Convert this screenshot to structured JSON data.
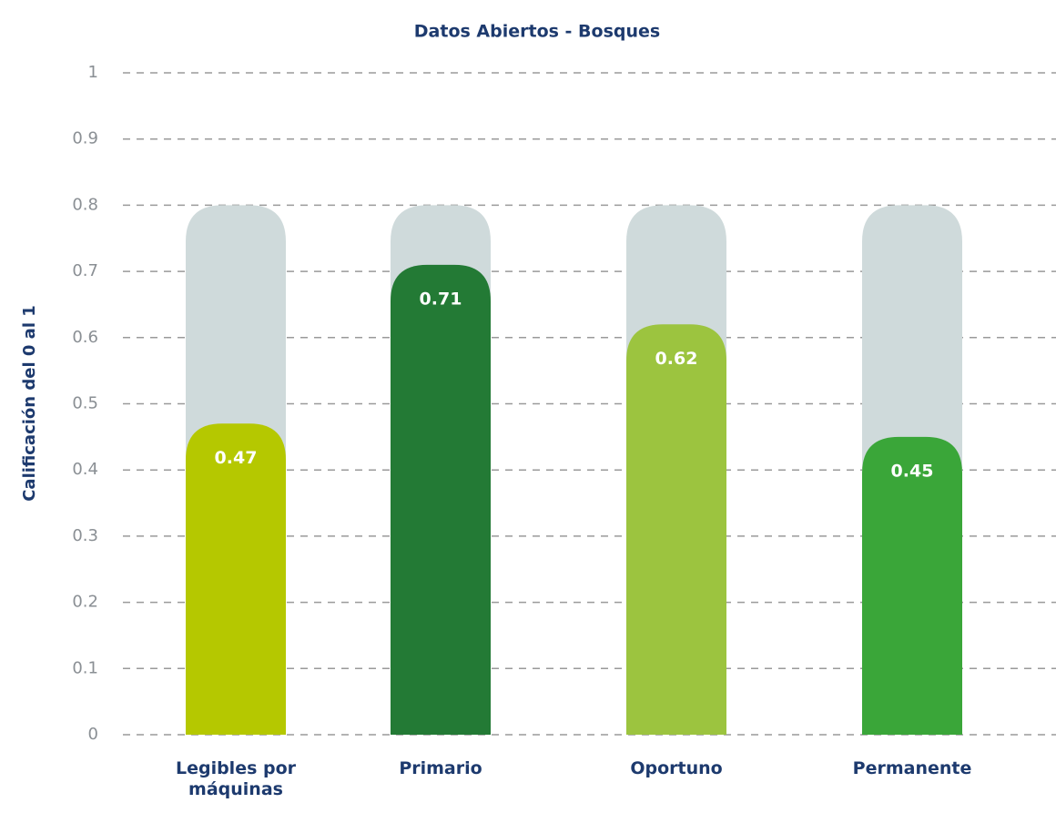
{
  "chart_data": {
    "type": "bar",
    "title": "Datos Abiertos - Bosques",
    "ylabel": "Calificación del 0 al 1",
    "categories": [
      "Legibles por máquinas",
      "Primario",
      "Oportuno",
      "Permanente"
    ],
    "values": [
      0.47,
      0.71,
      0.62,
      0.45
    ],
    "colors": [
      "#b5c800",
      "#237a35",
      "#9cc43f",
      "#3aa639"
    ],
    "max_values": [
      0.8,
      0.8,
      0.8,
      0.8
    ],
    "max_color": "#cfdadb",
    "ylim": [
      0,
      1
    ],
    "yticks": [
      0,
      0.1,
      0.2,
      0.3,
      0.4,
      0.5,
      0.6,
      0.7,
      0.8,
      0.9,
      1
    ],
    "grid": true
  }
}
